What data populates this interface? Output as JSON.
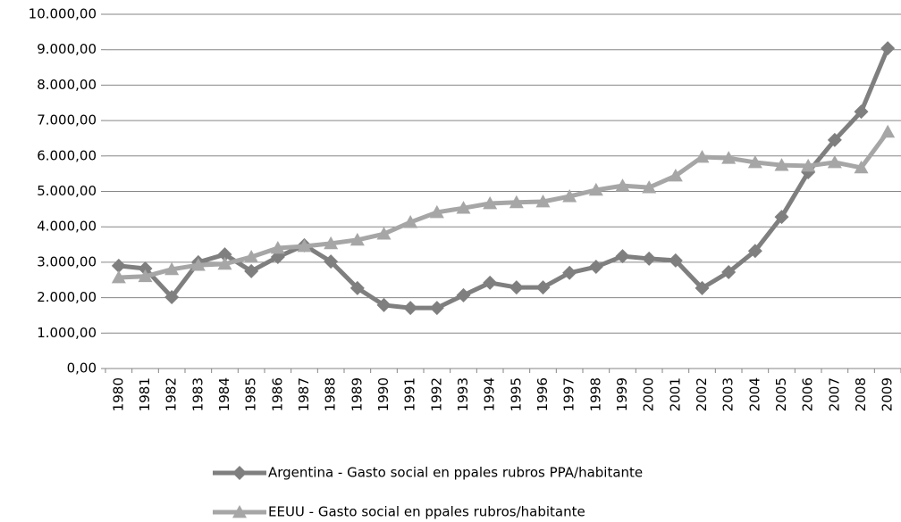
{
  "chart_data": {
    "type": "line",
    "categories": [
      "1980",
      "1981",
      "1982",
      "1983",
      "1984",
      "1985",
      "1986",
      "1987",
      "1988",
      "1989",
      "1990",
      "1991",
      "1992",
      "1993",
      "1994",
      "1995",
      "1996",
      "1997",
      "1998",
      "1999",
      "2000",
      "2001",
      "2002",
      "2003",
      "2004",
      "2005",
      "2006",
      "2007",
      "2008",
      "2009"
    ],
    "series": [
      {
        "name": "Argentina - Gasto social en ppales rubros PPA/habitante",
        "color": "#7f7f7f",
        "marker": "diamond",
        "values": [
          2900,
          2820,
          2015,
          3000,
          3220,
          2750,
          3150,
          3480,
          3020,
          2270,
          1790,
          1710,
          1710,
          2070,
          2420,
          2290,
          2290,
          2700,
          2870,
          3170,
          3100,
          3050,
          2270,
          2720,
          3320,
          4280,
          5540,
          6450,
          7250,
          9040
        ]
      },
      {
        "name": "EEUU - Gasto social en ppales rubros/habitante",
        "color": "#a6a6a6",
        "marker": "triangle",
        "values": [
          2570,
          2600,
          2800,
          2920,
          2950,
          3150,
          3400,
          3450,
          3530,
          3630,
          3800,
          4130,
          4410,
          4530,
          4660,
          4690,
          4710,
          4860,
          5040,
          5160,
          5110,
          5440,
          5970,
          5940,
          5820,
          5740,
          5720,
          5820,
          5670,
          6680
        ]
      }
    ],
    "ylim": [
      0,
      10000
    ],
    "yticks": [
      {
        "value": 0,
        "label": "0,00"
      },
      {
        "value": 1000,
        "label": "1.000,00"
      },
      {
        "value": 2000,
        "label": "2.000,00"
      },
      {
        "value": 3000,
        "label": "3.000,00"
      },
      {
        "value": 4000,
        "label": "4.000,00"
      },
      {
        "value": 5000,
        "label": "5.000,00"
      },
      {
        "value": 6000,
        "label": "6.000,00"
      },
      {
        "value": 7000,
        "label": "7.000,00"
      },
      {
        "value": 8000,
        "label": "8.000,00"
      },
      {
        "value": 9000,
        "label": "9.000,00"
      },
      {
        "value": 10000,
        "label": "10.000,00"
      }
    ],
    "grid": true,
    "legend": "bottom"
  }
}
